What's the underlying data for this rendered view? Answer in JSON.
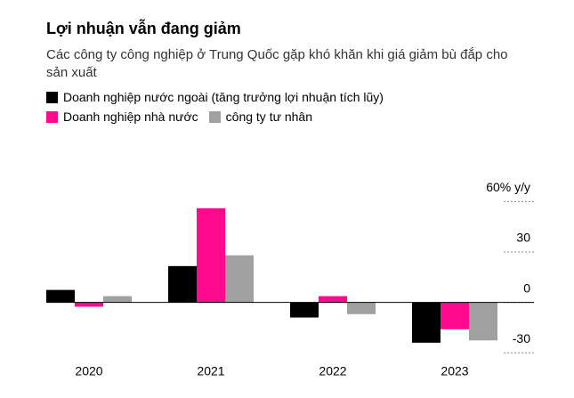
{
  "chart_data": {
    "type": "bar",
    "title": "Lợi nhuận vẫn đang giảm",
    "subtitle": "Các công ty công nghiệp ở Trung Quốc gặp khó khăn khi giá giảm bù đắp cho sản xuất",
    "categories": [
      "2020",
      "2021",
      "2022",
      "2023"
    ],
    "series": [
      {
        "name": "Doanh nghiệp nước ngoài (tăng trưởng lợi nhuận tích lũy)",
        "color": "#000000",
        "values": [
          7.4,
          21.6,
          -9,
          -24
        ]
      },
      {
        "name": "Doanh nghiệp nhà nước",
        "color": "#ff0a8c",
        "values": [
          -2.6,
          56,
          3.7,
          -16
        ]
      },
      {
        "name": "công ty tư nhân",
        "color": "#a0a0a0",
        "values": [
          3.7,
          28,
          -7,
          -22.6
        ]
      }
    ],
    "ylim": [
      -32,
      66
    ],
    "yticks": [
      {
        "value": 60,
        "label": "60% y/y"
      },
      30,
      0,
      -30
    ],
    "grid": true
  }
}
